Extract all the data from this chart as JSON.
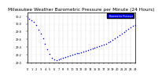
{
  "title": "Milwaukee Weather Barometric Pressure per Minute (24 Hours)",
  "title_fontsize": 4.2,
  "background_color": "#ffffff",
  "plot_bg_color": "#ffffff",
  "dot_color": "#0000ff",
  "dot_size": 1.2,
  "legend_label": "Barometric Pressure",
  "legend_color": "#0000ff",
  "ylim": [
    29.0,
    30.3
  ],
  "xlim": [
    0,
    1440
  ],
  "yticks": [
    29.0,
    29.2,
    29.4,
    29.6,
    29.8,
    30.0,
    30.2
  ],
  "ytick_labels": [
    "29.0",
    "29.2",
    "29.4",
    "29.6",
    "29.8",
    "30.0",
    "30.2"
  ],
  "xtick_positions": [
    0,
    60,
    120,
    180,
    240,
    300,
    360,
    420,
    480,
    540,
    600,
    660,
    720,
    780,
    840,
    900,
    960,
    1020,
    1080,
    1140,
    1200,
    1260,
    1320,
    1380,
    1440
  ],
  "xtick_labels": [
    "0",
    "1",
    "2",
    "3",
    "4",
    "5",
    "6",
    "7",
    "8",
    "9",
    "10",
    "11",
    "12",
    "13",
    "14",
    "15",
    "16",
    "17",
    "18",
    "19",
    "20",
    "21",
    "22",
    "23",
    "24"
  ],
  "grid_color": "#aaaaaa",
  "x_data": [
    0,
    30,
    60,
    90,
    120,
    150,
    180,
    210,
    240,
    270,
    300,
    330,
    360,
    390,
    420,
    450,
    480,
    510,
    540,
    570,
    600,
    630,
    660,
    690,
    720,
    750,
    780,
    810,
    840,
    870,
    900,
    930,
    960,
    990,
    1020,
    1050,
    1080,
    1110,
    1140,
    1170,
    1200,
    1230,
    1260,
    1290,
    1320,
    1350,
    1380,
    1410,
    1440
  ],
  "y_data": [
    30.18,
    30.14,
    30.1,
    30.05,
    29.96,
    29.85,
    29.75,
    29.62,
    29.48,
    29.35,
    29.22,
    29.12,
    29.08,
    29.06,
    29.08,
    29.1,
    29.12,
    29.14,
    29.16,
    29.18,
    29.2,
    29.22,
    29.24,
    29.25,
    29.26,
    29.28,
    29.3,
    29.32,
    29.34,
    29.36,
    29.38,
    29.4,
    29.42,
    29.44,
    29.46,
    29.48,
    29.52,
    29.55,
    29.58,
    29.62,
    29.66,
    29.7,
    29.74,
    29.78,
    29.82,
    29.86,
    29.9,
    29.94,
    29.96
  ]
}
